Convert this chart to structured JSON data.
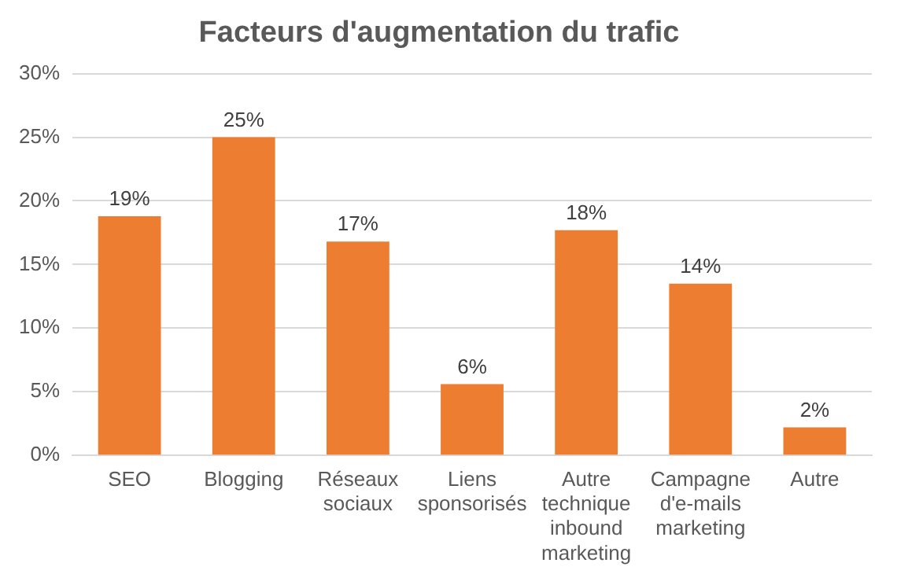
{
  "chart_data": {
    "type": "bar",
    "title": "Facteurs d'augmentation du trafic",
    "categories": [
      "SEO",
      "Blogging",
      "Réseaux sociaux",
      "Liens sponsorisés",
      "Autre technique inbound marketing",
      "Campagne d'e-mails marketing",
      "Autre"
    ],
    "values": [
      18.8,
      25,
      16.8,
      5.6,
      17.7,
      13.5,
      2.2
    ],
    "value_labels": [
      "19%",
      "25%",
      "17%",
      "6%",
      "18%",
      "14%",
      "2%"
    ],
    "color": "#ed7d31",
    "ylim": [
      0,
      30
    ],
    "yticks": [
      {
        "value": 0,
        "label": "0%"
      },
      {
        "value": 5,
        "label": "5%"
      },
      {
        "value": 10,
        "label": "10%"
      },
      {
        "value": 15,
        "label": "15%"
      },
      {
        "value": 20,
        "label": "20%"
      },
      {
        "value": 25,
        "label": "25%"
      },
      {
        "value": 30,
        "label": "30%"
      }
    ],
    "grid": "y",
    "legend": false
  }
}
